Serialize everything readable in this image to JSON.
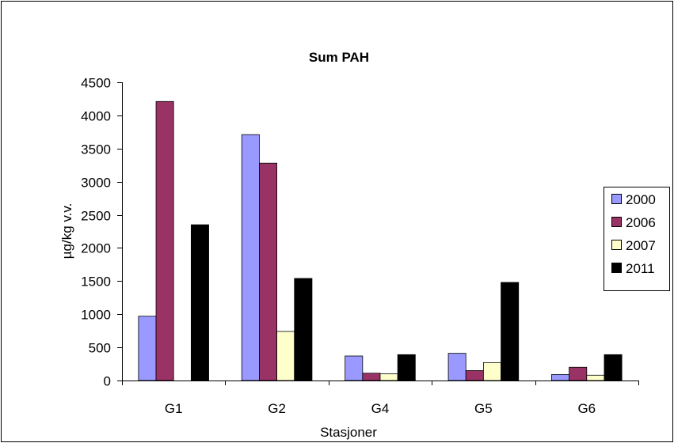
{
  "chart_data": {
    "type": "bar",
    "title": "Sum PAH",
    "xlabel": "Stasjoner",
    "ylabel": "µg/kg v.v.",
    "ylim": [
      0,
      4500
    ],
    "yticks": [
      "0",
      "500",
      "1000",
      "1500",
      "2000",
      "2500",
      "3000",
      "3500",
      "4000",
      "4500"
    ],
    "categories": [
      "G1",
      "G2",
      "G4",
      "G5",
      "G6"
    ],
    "series": [
      {
        "name": "2000",
        "color": "#9999ff",
        "values": [
          970,
          3710,
          370,
          410,
          90
        ]
      },
      {
        "name": "2006",
        "color": "#993366",
        "values": [
          4210,
          3280,
          110,
          150,
          200
        ]
      },
      {
        "name": "2007",
        "color": "#ffffcc",
        "values": [
          0,
          740,
          100,
          270,
          80
        ]
      },
      {
        "name": "2011",
        "color": "#000000",
        "values": [
          2350,
          1540,
          390,
          1480,
          390
        ]
      }
    ],
    "legend_position": "right",
    "grid": false
  }
}
